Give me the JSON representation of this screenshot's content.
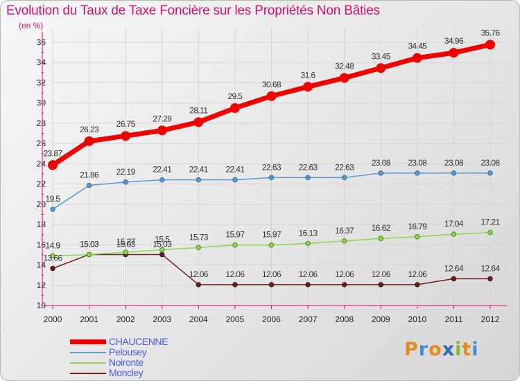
{
  "title": "Evolution du Taux de Taxe Foncière sur les Propriétés Non Bâties",
  "unit": "(en %)",
  "logo": {
    "letters": [
      "P",
      "r",
      "o",
      "x",
      "i",
      "t",
      "i"
    ],
    "colors": [
      "#e58b1c",
      "#3c8fd4",
      "#e58b1c",
      "#2f6cc0",
      "#7cbf2a",
      "#e58b1c",
      "#3c8fd4"
    ]
  },
  "chart_data": {
    "type": "line",
    "title": "Evolution du Taux de Taxe Foncière sur les Propriétés Non Bâties",
    "ylabel": "(en %)",
    "xlabel": "",
    "ylim": [
      10,
      36
    ],
    "yticks": [
      10,
      12,
      14,
      16,
      18,
      20,
      22,
      24,
      26,
      28,
      30,
      32,
      34,
      36
    ],
    "x": [
      "2000",
      "2001",
      "2002",
      "2003",
      "2004",
      "2005",
      "2006",
      "2007",
      "2008",
      "2009",
      "2010",
      "2011",
      "2012"
    ],
    "grid": true,
    "series": [
      {
        "name": "CHAUCENNE",
        "color": "#ee0000",
        "values": [
          23.87,
          26.23,
          26.75,
          27.29,
          28.11,
          29.5,
          30.68,
          31.6,
          32.48,
          33.45,
          34.45,
          34.96,
          35.76
        ],
        "labels": [
          "23.87",
          "26.23",
          "26.75",
          "27.29",
          "28.11",
          "29.5",
          "30.68",
          "31.6",
          "32.48",
          "33.45",
          "34.45",
          "34.96",
          "35.76"
        ]
      },
      {
        "name": "Pelousey",
        "color": "#5a9bd0",
        "values": [
          19.5,
          21.86,
          22.19,
          22.41,
          22.41,
          22.41,
          22.63,
          22.63,
          22.63,
          23.08,
          23.08,
          23.08,
          23.08
        ],
        "labels": [
          "19.5",
          "21.86",
          "22.19",
          "22.41",
          "22.41",
          "22.41",
          "22.63",
          "22.63",
          "22.63",
          "23.08",
          "23.08",
          "23.08",
          "23.08"
        ]
      },
      {
        "name": "Noironte",
        "color": "#8ed64c",
        "values": [
          14.9,
          15.03,
          15.27,
          15.5,
          15.73,
          15.97,
          15.97,
          16.13,
          16.37,
          16.62,
          16.79,
          17.04,
          17.21
        ],
        "labels": [
          "14.9",
          "15.03",
          "15.27",
          "15.5",
          "15.73",
          "15.97",
          "15.97",
          "16.13",
          "16.37",
          "16.62",
          "16.79",
          "17.04",
          "17.21"
        ]
      },
      {
        "name": "Moncley",
        "color": "#6b1f1f",
        "values": [
          13.66,
          15.03,
          15.03,
          15.03,
          12.06,
          12.06,
          12.06,
          12.06,
          12.06,
          12.06,
          12.06,
          12.64,
          12.64
        ],
        "labels": [
          "13.66",
          "15.03",
          "15.03",
          "15.03",
          "12.06",
          "12.06",
          "12.06",
          "12.06",
          "12.06",
          "12.06",
          "12.06",
          "12.64",
          "12.64"
        ]
      }
    ]
  }
}
